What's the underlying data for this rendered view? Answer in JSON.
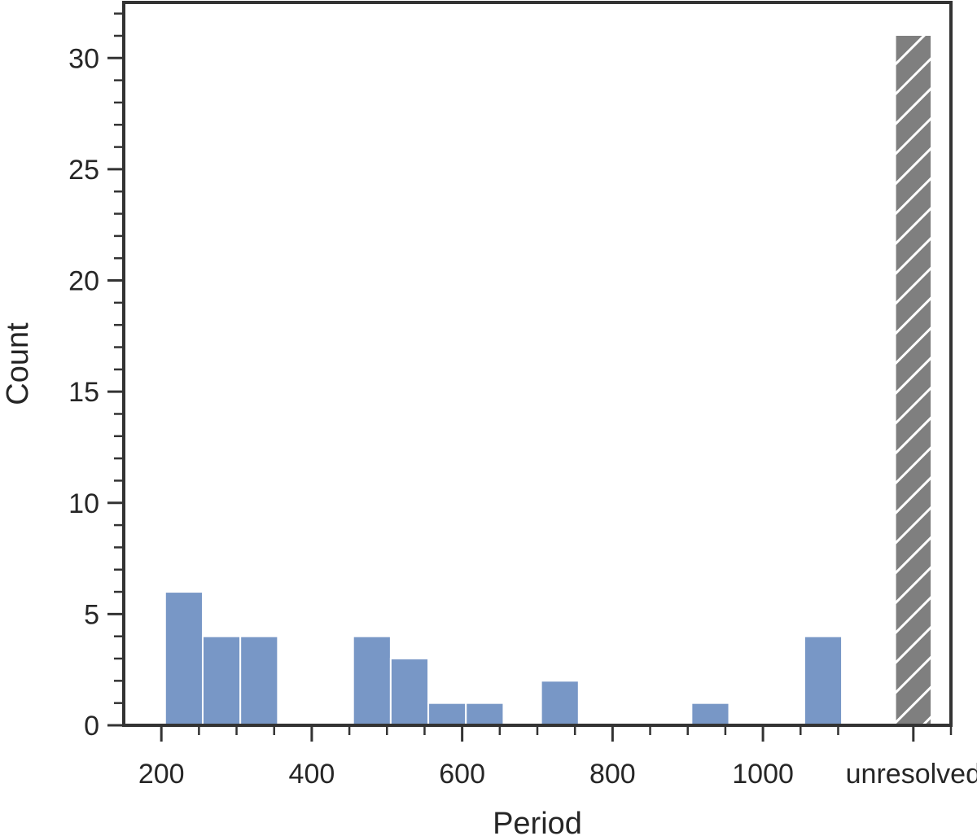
{
  "chart_data": {
    "type": "bar",
    "title": "",
    "xlabel": "Period",
    "ylabel": "Count",
    "xlim": [
      150,
      1250
    ],
    "ylim": [
      0,
      32.5
    ],
    "grid": false,
    "legend": "none",
    "x_ticks": [
      {
        "value": 200,
        "label": "200"
      },
      {
        "value": 400,
        "label": "400"
      },
      {
        "value": 600,
        "label": "600"
      },
      {
        "value": 800,
        "label": "800"
      },
      {
        "value": 1000,
        "label": "1000"
      },
      {
        "value": 1200,
        "label": "unresolved"
      }
    ],
    "x_minor_ticks": [
      250,
      300,
      350,
      450,
      500,
      550,
      650,
      700,
      750,
      850,
      900,
      950,
      1050,
      1100,
      1250
    ],
    "y_ticks": [
      0,
      5,
      10,
      15,
      20,
      25,
      30
    ],
    "y_minor_step": 1,
    "bars": [
      {
        "x_start": 205,
        "x_end": 255,
        "value": 6
      },
      {
        "x_start": 255,
        "x_end": 305,
        "value": 4
      },
      {
        "x_start": 305,
        "x_end": 355,
        "value": 4
      },
      {
        "x_start": 455,
        "x_end": 505,
        "value": 4
      },
      {
        "x_start": 505,
        "x_end": 555,
        "value": 3
      },
      {
        "x_start": 555,
        "x_end": 605,
        "value": 1
      },
      {
        "x_start": 605,
        "x_end": 655,
        "value": 1
      },
      {
        "x_start": 705,
        "x_end": 755,
        "value": 2
      },
      {
        "x_start": 905,
        "x_end": 955,
        "value": 1
      },
      {
        "x_start": 1055,
        "x_end": 1105,
        "value": 4
      }
    ],
    "unresolved_bar": {
      "x_start": 1177,
      "x_end": 1223,
      "value": 31,
      "label": "unresolved"
    },
    "colors": {
      "bar": "#7897c6",
      "unresolved": "#7f7f7f",
      "hatch": "#ffffff",
      "axis": "#333333",
      "text": "#262626"
    }
  }
}
